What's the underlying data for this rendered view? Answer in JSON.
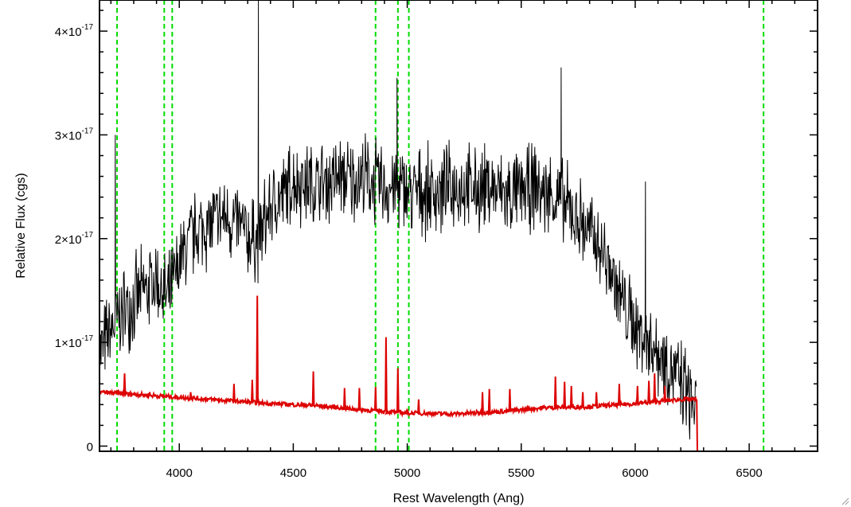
{
  "chart_data": {
    "type": "line",
    "xlabel": "Rest Wavelength (Ang)",
    "ylabel": "Relative Flux (cgs)",
    "xlim": [
      3650,
      6800
    ],
    "ylim": [
      -5e-19,
      4.3e-17
    ],
    "x_ticks": [
      {
        "value": 4000,
        "label": "4000"
      },
      {
        "value": 4500,
        "label": "4500"
      },
      {
        "value": 5000,
        "label": "5000"
      },
      {
        "value": 5500,
        "label": "5500"
      },
      {
        "value": 6000,
        "label": "6000"
      },
      {
        "value": 6500,
        "label": "6500"
      }
    ],
    "y_ticks": [
      {
        "value": 0,
        "mant": "0",
        "exp": ""
      },
      {
        "value": 1e-17,
        "mant": "1×10",
        "exp": "-17"
      },
      {
        "value": 2e-17,
        "mant": "2×10",
        "exp": "-17"
      },
      {
        "value": 3e-17,
        "mant": "3×10",
        "exp": "-17"
      },
      {
        "value": 4e-17,
        "mant": "4×10",
        "exp": "-17"
      }
    ],
    "x_minor_step": 100,
    "y_minor_step": 2e-18,
    "vlines": {
      "color": "#00dd00",
      "style": "dashed",
      "x": [
        3727,
        3934,
        3969,
        4861,
        4959,
        5007,
        6563
      ]
    },
    "series": [
      {
        "color": "#000000",
        "style": "noisy spectrum",
        "x": [
          3650,
          3700,
          3750,
          3800,
          3850,
          3900,
          3950,
          4000,
          4050,
          4100,
          4150,
          4200,
          4250,
          4300,
          4350,
          4400,
          4450,
          4500,
          4550,
          4600,
          4650,
          4700,
          4750,
          4800,
          4850,
          4900,
          4950,
          5000,
          5050,
          5100,
          5150,
          5200,
          5250,
          5300,
          5350,
          5400,
          5450,
          5500,
          5550,
          5600,
          5650,
          5700,
          5750,
          5800,
          5850,
          5900,
          5950,
          6000,
          6050,
          6100,
          6150,
          6200,
          6250,
          6270
        ],
        "y": [
          9e-18,
          1.1e-17,
          1.3e-17,
          1.4e-17,
          1.5e-17,
          1.6e-17,
          1.4e-17,
          1.75e-17,
          2e-17,
          2.1e-17,
          2.15e-17,
          2.2e-17,
          2.15e-17,
          2e-17,
          2e-17,
          2.3e-17,
          2.4e-17,
          2.55e-17,
          2.55e-17,
          2.5e-17,
          2.55e-17,
          2.6e-17,
          2.55e-17,
          2.6e-17,
          2.55e-17,
          2.5e-17,
          2.5e-17,
          2.45e-17,
          2.45e-17,
          2.45e-17,
          2.45e-17,
          2.5e-17,
          2.5e-17,
          2.45e-17,
          2.5e-17,
          2.45e-17,
          2.4e-17,
          2.45e-17,
          2.5e-17,
          2.45e-17,
          2.4e-17,
          2.3e-17,
          2.2e-17,
          2.05e-17,
          1.9e-17,
          1.65e-17,
          1.35e-17,
          1.15e-17,
          1.05e-17,
          9e-18,
          8e-18,
          6e-18,
          4.5e-18,
          3e-18
        ],
        "noise_amplitude": 5e-18,
        "spikes": [
          {
            "x": 3719,
            "y": 3e-17
          },
          {
            "x": 4347,
            "y": 5.5e-17
          },
          {
            "x": 4955,
            "y": 3.55e-17
          },
          {
            "x": 5675,
            "y": 3.65e-17
          },
          {
            "x": 6045,
            "y": 2.55e-17
          }
        ]
      },
      {
        "color": "#dd0000",
        "style": "model",
        "x": [
          3650,
          3800,
          4000,
          4200,
          4400,
          4600,
          4800,
          5000,
          5200,
          5400,
          5600,
          5800,
          6000,
          6200,
          6270,
          6271,
          6800
        ],
        "y": [
          5.2e-18,
          5e-18,
          4.7e-18,
          4.4e-18,
          4.1e-18,
          3.9e-18,
          3.5e-18,
          3.2e-18,
          3.1e-18,
          3.3e-18,
          3.7e-18,
          3.8e-18,
          4.1e-18,
          4.5e-18,
          4.5e-18,
          -5e-19,
          -5e-19
        ],
        "lines": [
          {
            "x": 3760,
            "y": 7e-18
          },
          {
            "x": 3870,
            "y": 5.2e-18
          },
          {
            "x": 4050,
            "y": 5.2e-18
          },
          {
            "x": 4240,
            "y": 6e-18
          },
          {
            "x": 4320,
            "y": 6.4e-18
          },
          {
            "x": 4342,
            "y": 1.45e-17
          },
          {
            "x": 4588,
            "y": 7.2e-18
          },
          {
            "x": 4725,
            "y": 5.6e-18
          },
          {
            "x": 4790,
            "y": 5.6e-18
          },
          {
            "x": 4861,
            "y": 5.7e-18
          },
          {
            "x": 4907,
            "y": 1.05e-17
          },
          {
            "x": 4959,
            "y": 7.5e-18
          },
          {
            "x": 5050,
            "y": 4.5e-18
          },
          {
            "x": 5330,
            "y": 5.2e-18
          },
          {
            "x": 5360,
            "y": 5.5e-18
          },
          {
            "x": 5450,
            "y": 5.5e-18
          },
          {
            "x": 5650,
            "y": 6.7e-18
          },
          {
            "x": 5690,
            "y": 6.2e-18
          },
          {
            "x": 5720,
            "y": 5.8e-18
          },
          {
            "x": 5770,
            "y": 5.2e-18
          },
          {
            "x": 5830,
            "y": 5.2e-18
          },
          {
            "x": 5930,
            "y": 6e-18
          },
          {
            "x": 6010,
            "y": 5.8e-18
          },
          {
            "x": 6060,
            "y": 6.3e-18
          },
          {
            "x": 6085,
            "y": 7e-18
          },
          {
            "x": 6130,
            "y": 5.8e-18
          }
        ]
      }
    ]
  }
}
